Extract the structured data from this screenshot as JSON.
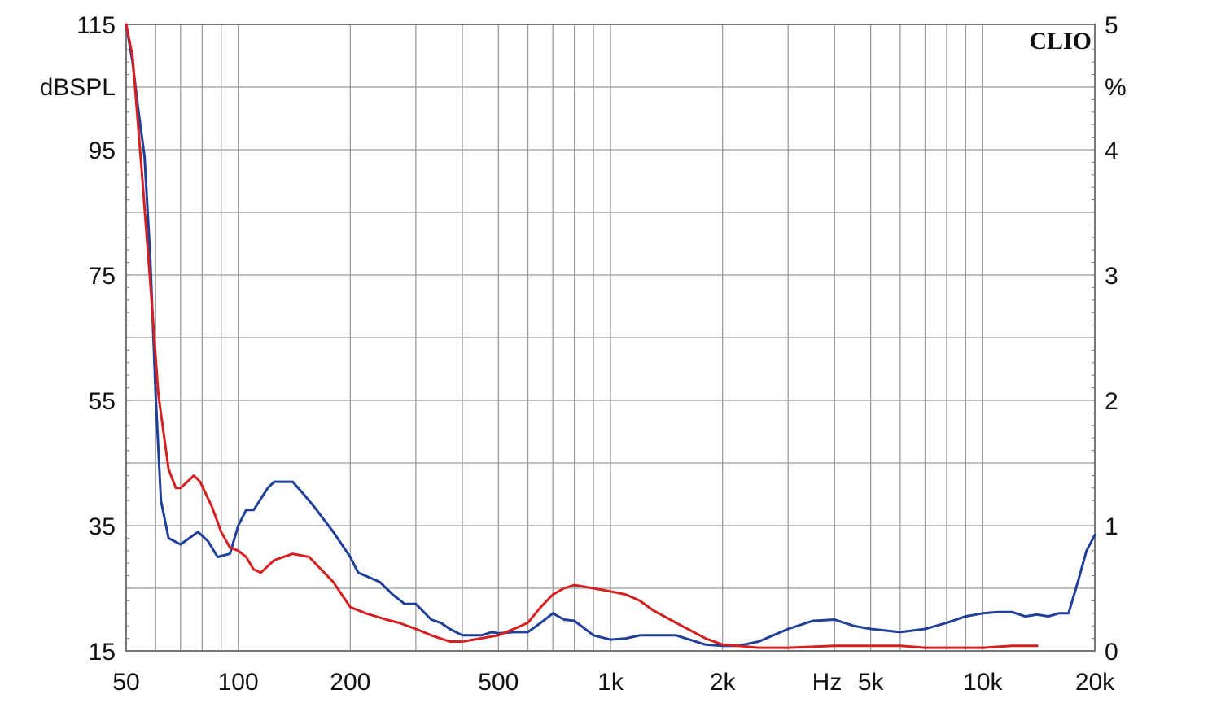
{
  "chart_data": {
    "type": "line",
    "brand": "CLIO",
    "left_axis": {
      "unit": "dBSPL",
      "range": [
        15,
        115
      ],
      "ticks": [
        15,
        35,
        55,
        75,
        95,
        115
      ],
      "tick_labels": [
        "15",
        "35",
        "55",
        "75",
        "95",
        "115"
      ]
    },
    "right_axis": {
      "unit": "%",
      "range": [
        0,
        5
      ],
      "ticks": [
        0,
        1,
        2,
        3,
        4,
        5
      ],
      "tick_labels": [
        "0",
        "1",
        "2",
        "3",
        "4",
        "5"
      ]
    },
    "x_axis": {
      "unit": "Hz",
      "scale": "log",
      "range": [
        50,
        20000
      ],
      "ticks": [
        50,
        100,
        200,
        500,
        1000,
        2000,
        5000,
        10000,
        20000
      ],
      "tick_labels": [
        "50",
        "100",
        "200",
        "500",
        "1k",
        "2k",
        "5k",
        "10k",
        "20k"
      ]
    },
    "grid": true,
    "series": [
      {
        "color": "#1f3f99",
        "axis": "left",
        "points": [
          [
            50,
            115
          ],
          [
            52,
            109
          ],
          [
            54,
            101
          ],
          [
            56,
            94
          ],
          [
            58,
            78
          ],
          [
            60,
            56
          ],
          [
            62,
            39
          ],
          [
            65,
            33
          ],
          [
            70,
            32
          ],
          [
            78,
            34
          ],
          [
            83,
            32.5
          ],
          [
            88,
            30
          ],
          [
            95,
            30.5
          ],
          [
            100,
            35
          ],
          [
            105,
            37.5
          ],
          [
            110,
            37.5
          ],
          [
            120,
            41
          ],
          [
            125,
            42
          ],
          [
            140,
            42
          ],
          [
            150,
            40
          ],
          [
            160,
            38
          ],
          [
            180,
            34
          ],
          [
            200,
            30
          ],
          [
            210,
            27.5
          ],
          [
            240,
            26
          ],
          [
            260,
            24
          ],
          [
            280,
            22.5
          ],
          [
            300,
            22.5
          ],
          [
            330,
            20
          ],
          [
            350,
            19.5
          ],
          [
            370,
            18.5
          ],
          [
            400,
            17.5
          ],
          [
            450,
            17.5
          ],
          [
            480,
            18
          ],
          [
            500,
            17.8
          ],
          [
            550,
            18
          ],
          [
            600,
            18
          ],
          [
            650,
            19.5
          ],
          [
            700,
            21
          ],
          [
            750,
            20
          ],
          [
            800,
            19.8
          ],
          [
            900,
            17.5
          ],
          [
            1000,
            16.8
          ],
          [
            1100,
            17
          ],
          [
            1200,
            17.5
          ],
          [
            1500,
            17.5
          ],
          [
            1800,
            16
          ],
          [
            2000,
            15.8
          ],
          [
            2200,
            15.8
          ],
          [
            2500,
            16.5
          ],
          [
            3000,
            18.5
          ],
          [
            3500,
            19.8
          ],
          [
            4000,
            20
          ],
          [
            4500,
            19
          ],
          [
            5000,
            18.5
          ],
          [
            6000,
            18
          ],
          [
            7000,
            18.5
          ],
          [
            8000,
            19.5
          ],
          [
            9000,
            20.5
          ],
          [
            10000,
            21
          ],
          [
            11000,
            21.2
          ],
          [
            12000,
            21.2
          ],
          [
            13000,
            20.5
          ],
          [
            14000,
            20.8
          ],
          [
            15000,
            20.5
          ],
          [
            16000,
            21
          ],
          [
            17000,
            21
          ],
          [
            18000,
            26
          ],
          [
            19000,
            31
          ],
          [
            20000,
            33.5
          ]
        ]
      },
      {
        "color": "#d42020",
        "axis": "left",
        "points": [
          [
            50,
            115
          ],
          [
            52,
            110
          ],
          [
            55,
            92
          ],
          [
            58,
            74
          ],
          [
            61,
            56
          ],
          [
            65,
            44
          ],
          [
            68,
            41
          ],
          [
            70,
            41
          ],
          [
            73,
            42
          ],
          [
            76,
            43
          ],
          [
            79,
            42
          ],
          [
            85,
            38
          ],
          [
            90,
            34
          ],
          [
            95,
            31.5
          ],
          [
            100,
            31
          ],
          [
            105,
            30
          ],
          [
            110,
            28
          ],
          [
            115,
            27.5
          ],
          [
            125,
            29.5
          ],
          [
            140,
            30.5
          ],
          [
            155,
            30
          ],
          [
            180,
            26
          ],
          [
            200,
            22
          ],
          [
            220,
            21
          ],
          [
            250,
            20
          ],
          [
            270,
            19.5
          ],
          [
            300,
            18.5
          ],
          [
            330,
            17.5
          ],
          [
            370,
            16.5
          ],
          [
            400,
            16.5
          ],
          [
            500,
            17.5
          ],
          [
            550,
            18.5
          ],
          [
            600,
            19.5
          ],
          [
            650,
            22
          ],
          [
            700,
            24
          ],
          [
            750,
            25
          ],
          [
            800,
            25.5
          ],
          [
            900,
            25
          ],
          [
            1000,
            24.5
          ],
          [
            1100,
            24
          ],
          [
            1200,
            23
          ],
          [
            1300,
            21.5
          ],
          [
            1500,
            19.5
          ],
          [
            1800,
            17
          ],
          [
            2000,
            16
          ],
          [
            2200,
            15.8
          ],
          [
            2500,
            15.5
          ],
          [
            3000,
            15.5
          ],
          [
            4000,
            15.8
          ],
          [
            5000,
            15.8
          ],
          [
            6000,
            15.8
          ],
          [
            7000,
            15.5
          ],
          [
            8000,
            15.5
          ],
          [
            10000,
            15.5
          ],
          [
            12000,
            15.8
          ],
          [
            14000,
            15.8
          ]
        ]
      }
    ]
  }
}
